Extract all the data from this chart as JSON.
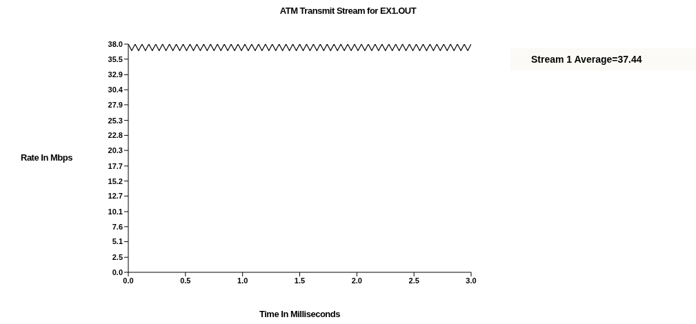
{
  "chart_data": {
    "type": "line",
    "title": "ATM Transmit Stream for EX1.OUT",
    "xlabel": "Time In Milliseconds",
    "ylabel": "Rate In Mbps",
    "annotations": [
      "Stream 1 Average=37.44"
    ],
    "x": [
      0,
      0.03,
      0.06,
      0.09,
      0.12,
      0.15,
      0.18,
      0.21,
      0.24,
      0.27,
      0.3,
      0.33,
      0.36,
      0.39,
      0.42,
      0.45,
      0.48,
      0.51,
      0.54,
      0.57,
      0.6,
      0.63,
      0.66,
      0.69,
      0.72,
      0.75,
      0.78,
      0.81,
      0.84,
      0.87,
      0.9,
      0.93,
      0.96,
      0.99,
      1.02,
      1.05,
      1.08,
      1.11,
      1.14,
      1.17,
      1.2,
      1.23,
      1.26,
      1.29,
      1.32,
      1.35,
      1.38,
      1.41,
      1.44,
      1.47,
      1.5,
      1.53,
      1.56,
      1.59,
      1.62,
      1.65,
      1.68,
      1.71,
      1.74,
      1.77,
      1.8,
      1.83,
      1.86,
      1.89,
      1.92,
      1.95,
      1.98,
      2.01,
      2.04,
      2.07,
      2.1,
      2.13,
      2.16,
      2.19,
      2.22,
      2.25,
      2.28,
      2.31,
      2.34,
      2.37,
      2.4,
      2.43,
      2.46,
      2.49,
      2.52,
      2.55,
      2.58,
      2.61,
      2.64,
      2.67,
      2.7,
      2.73,
      2.76,
      2.79,
      2.82,
      2.85,
      2.88,
      2.91,
      2.94,
      2.97,
      3
    ],
    "series": [
      {
        "color": "#000000",
        "values": [
          38,
          36.9,
          38,
          36.9,
          38,
          36.9,
          38,
          36.9,
          38,
          36.9,
          38,
          36.9,
          38,
          36.9,
          38,
          36.9,
          38,
          36.9,
          38,
          36.9,
          38,
          36.9,
          38,
          36.9,
          38,
          36.9,
          38,
          36.9,
          38,
          36.9,
          38,
          36.9,
          38,
          36.9,
          38,
          36.9,
          38,
          36.9,
          38,
          36.9,
          38,
          36.9,
          38,
          36.9,
          38,
          36.9,
          38,
          36.9,
          38,
          36.9,
          38,
          36.9,
          38,
          36.9,
          38,
          36.9,
          38,
          36.9,
          38,
          36.9,
          38,
          36.9,
          38,
          36.9,
          38,
          36.9,
          38,
          36.9,
          38,
          36.9,
          38,
          36.9,
          38,
          36.9,
          38,
          36.9,
          38,
          36.9,
          38,
          36.9,
          38,
          36.9,
          38,
          36.9,
          38,
          36.9,
          38,
          36.9,
          38,
          36.9,
          38,
          36.9,
          38,
          36.9,
          38,
          36.9,
          38,
          36.9,
          38,
          36.9,
          38
        ]
      }
    ],
    "xlim": [
      0,
      3
    ],
    "xticks": [
      {
        "value": 0,
        "label": "0.0"
      },
      0.5,
      {
        "value": 1,
        "label": "1.0"
      },
      1.5,
      {
        "value": 2,
        "label": "2.0"
      },
      2.5,
      {
        "value": 3,
        "label": "3.0"
      }
    ],
    "ylim": [
      0,
      38
    ],
    "yticks": [
      {
        "value": 0,
        "label": "0.0"
      },
      2.5,
      5.1,
      7.6,
      10.1,
      12.7,
      15.2,
      17.7,
      20.3,
      22.8,
      25.3,
      27.9,
      30.4,
      32.9,
      35.5,
      {
        "value": 38,
        "label": "38.0"
      }
    ],
    "grid": false,
    "marker": "none",
    "line_style": "solid"
  }
}
